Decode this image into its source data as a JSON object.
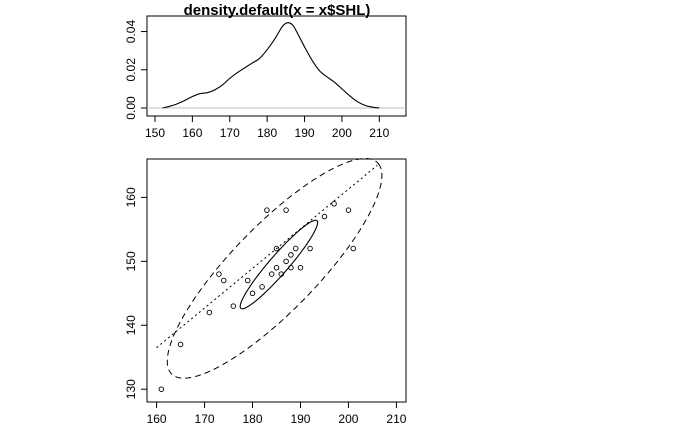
{
  "chart_data": [
    {
      "type": "line",
      "title": "density.default(x = x$SHL)",
      "xlim": [
        150,
        215
      ],
      "ylim": [
        0,
        0.045
      ],
      "xticks": [
        150,
        160,
        170,
        180,
        190,
        200,
        210
      ],
      "yticks": [
        0.0,
        0.02,
        0.04
      ],
      "ytick_labels": [
        "0.00",
        "0.02",
        "0.04"
      ],
      "grid": false,
      "density_curve": {
        "x": [
          152,
          155,
          158,
          160,
          162,
          164,
          166,
          168,
          170,
          172,
          174,
          176,
          178,
          180,
          182,
          184,
          185,
          186,
          187,
          188,
          190,
          192,
          194,
          196,
          198,
          200,
          202,
          204,
          206,
          208,
          210
        ],
        "y": [
          0.0,
          0.0015,
          0.004,
          0.006,
          0.0075,
          0.008,
          0.0095,
          0.012,
          0.0155,
          0.0185,
          0.021,
          0.0235,
          0.026,
          0.0305,
          0.036,
          0.0425,
          0.0443,
          0.0445,
          0.043,
          0.0395,
          0.032,
          0.025,
          0.0195,
          0.0163,
          0.0135,
          0.01,
          0.0065,
          0.0035,
          0.0015,
          0.0005,
          0.0
        ]
      },
      "baseline_y": 0
    },
    {
      "type": "scatter",
      "xlim": [
        158,
        212
      ],
      "ylim": [
        128,
        166
      ],
      "xticks": [
        160,
        170,
        180,
        190,
        200,
        210
      ],
      "yticks": [
        130,
        140,
        150,
        160
      ],
      "grid": false,
      "points": [
        {
          "x": 161,
          "y": 130
        },
        {
          "x": 165,
          "y": 137
        },
        {
          "x": 171,
          "y": 142
        },
        {
          "x": 173,
          "y": 148
        },
        {
          "x": 174,
          "y": 147
        },
        {
          "x": 176,
          "y": 143
        },
        {
          "x": 179,
          "y": 147
        },
        {
          "x": 180,
          "y": 145
        },
        {
          "x": 182,
          "y": 146
        },
        {
          "x": 183,
          "y": 158
        },
        {
          "x": 184,
          "y": 148
        },
        {
          "x": 185,
          "y": 152
        },
        {
          "x": 185,
          "y": 149
        },
        {
          "x": 186,
          "y": 148
        },
        {
          "x": 187,
          "y": 150
        },
        {
          "x": 187,
          "y": 158
        },
        {
          "x": 188,
          "y": 151
        },
        {
          "x": 188,
          "y": 149
        },
        {
          "x": 189,
          "y": 152
        },
        {
          "x": 190,
          "y": 149
        },
        {
          "x": 192,
          "y": 152
        },
        {
          "x": 195,
          "y": 157
        },
        {
          "x": 197,
          "y": 159
        },
        {
          "x": 200,
          "y": 158
        },
        {
          "x": 201,
          "y": 152
        }
      ],
      "inner_ellipse": {
        "cx": 185.5,
        "cy": 149.5,
        "major_end": [
          193.5,
          156.3
        ],
        "minor_end": [
          184.4,
          150.8
        ]
      },
      "outer_ellipse": {
        "cx": 184.6,
        "cy": 148.9,
        "major_end": [
          206.5,
          165.0
        ],
        "minor_end": [
          180.0,
          154.9
        ]
      },
      "regression_line": {
        "x": [
          160,
          206
        ],
        "y": [
          136.5,
          165.0
        ]
      }
    }
  ]
}
